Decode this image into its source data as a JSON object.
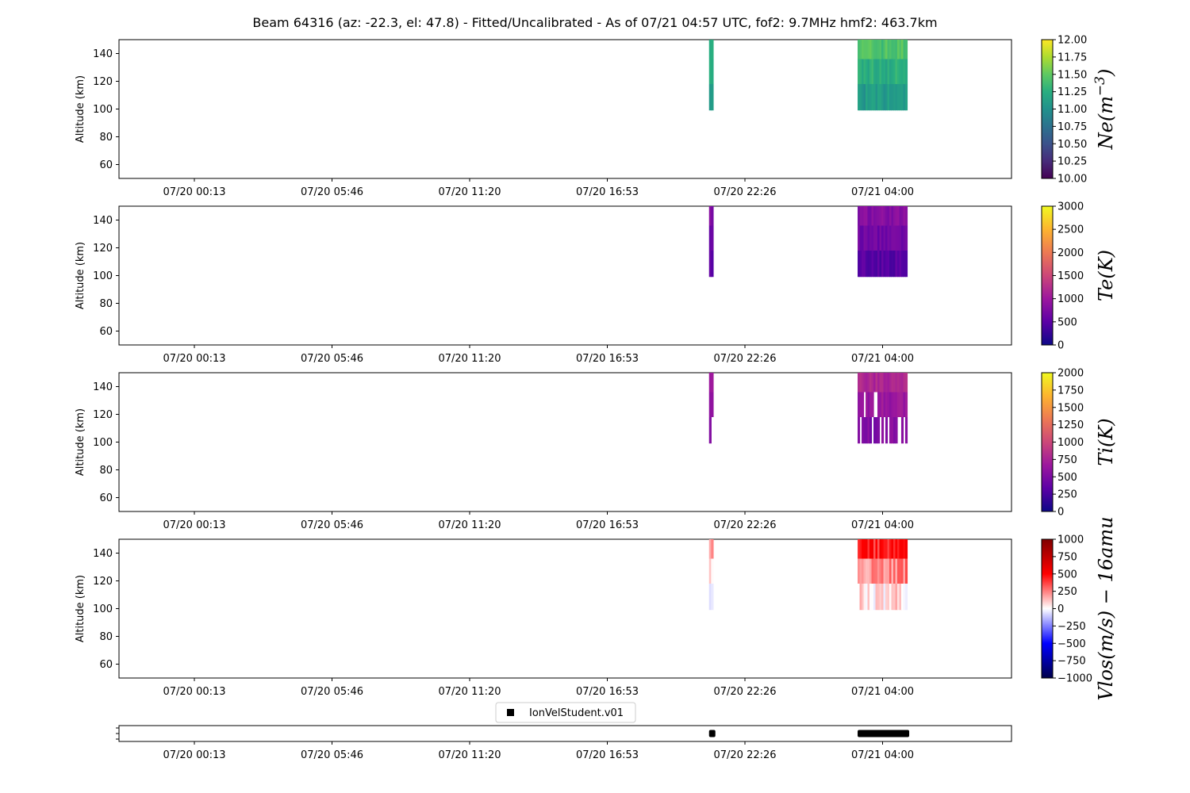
{
  "title": "Beam 64316 (az: -22.3, el: 47.8) - Fitted/Uncalibrated - As of 07/21 04:57 UTC, fof2: 9.7MHz  hmf2: 463.7km",
  "colors": {
    "viridis": [
      "#440154",
      "#472c7a",
      "#3b528b",
      "#2c728e",
      "#21918c",
      "#28ae80",
      "#5ec962",
      "#addc30",
      "#fde725"
    ],
    "plasma": [
      "#0d0887",
      "#5c01a6",
      "#9c179e",
      "#cc4778",
      "#ed7953",
      "#fdb42f",
      "#f0f921"
    ],
    "seismic": [
      "#00004c",
      "#0000ff",
      "#ffffff",
      "#ff0000",
      "#800000"
    ],
    "marker": "#000000"
  },
  "chart_data": [
    {
      "type": "heatmap",
      "parameter": "Ne",
      "colorbar_label": "Ne(m^-3)",
      "colormap": "viridis",
      "ylabel": "Altitude (km)",
      "yticks": [
        60,
        80,
        100,
        120,
        140
      ],
      "ylim": [
        50,
        150
      ],
      "xticks": [
        "07/20 00:13",
        "07/20 05:46",
        "07/20 11:20",
        "07/20 16:53",
        "07/20 22:26",
        "07/21 04:00"
      ],
      "clim": [
        10.0,
        12.0
      ],
      "colorbar_ticks": [
        "10.00",
        "10.25",
        "10.50",
        "10.75",
        "11.00",
        "11.25",
        "11.50",
        "11.75",
        "12.00"
      ],
      "data_blocks": [
        {
          "time_range": [
            "07/20 21:00",
            "07/20 21:10"
          ],
          "altitude_range": [
            99,
            150
          ],
          "value_range": [
            11.0,
            11.4
          ]
        },
        {
          "time_range": [
            "07/21 03:00",
            "07/21 05:00"
          ],
          "altitude_range": [
            99,
            150
          ],
          "value_range": [
            10.9,
            11.6
          ]
        }
      ]
    },
    {
      "type": "heatmap",
      "parameter": "Te",
      "colorbar_label": "Te(K)",
      "colormap": "plasma",
      "ylabel": "Altitude (km)",
      "yticks": [
        60,
        80,
        100,
        120,
        140
      ],
      "ylim": [
        50,
        150
      ],
      "xticks": [
        "07/20 00:13",
        "07/20 05:46",
        "07/20 11:20",
        "07/20 16:53",
        "07/20 22:26",
        "07/21 04:00"
      ],
      "clim": [
        0,
        3000
      ],
      "colorbar_ticks": [
        "0",
        "500",
        "1000",
        "1500",
        "2000",
        "2500",
        "3000"
      ],
      "data_blocks": [
        {
          "time_range": [
            "07/20 21:00",
            "07/20 21:10"
          ],
          "altitude_range": [
            99,
            150
          ],
          "value_range": [
            400,
            900
          ]
        },
        {
          "time_range": [
            "07/21 03:00",
            "07/21 05:00"
          ],
          "altitude_range": [
            99,
            150
          ],
          "value_range": [
            300,
            1000
          ]
        }
      ]
    },
    {
      "type": "heatmap",
      "parameter": "Ti",
      "colorbar_label": "Ti(K)",
      "colormap": "plasma",
      "ylabel": "Altitude (km)",
      "yticks": [
        60,
        80,
        100,
        120,
        140
      ],
      "ylim": [
        50,
        150
      ],
      "xticks": [
        "07/20 00:13",
        "07/20 05:46",
        "07/20 11:20",
        "07/20 16:53",
        "07/20 22:26",
        "07/21 04:00"
      ],
      "clim": [
        0,
        2000
      ],
      "colorbar_ticks": [
        "0",
        "250",
        "500",
        "750",
        "1000",
        "1250",
        "1500",
        "1750",
        "2000"
      ],
      "data_blocks": [
        {
          "time_range": [
            "07/20 21:00",
            "07/20 21:10"
          ],
          "altitude_range": [
            99,
            150
          ],
          "value_range": [
            500,
            700
          ]
        },
        {
          "time_range": [
            "07/21 03:00",
            "07/21 05:00"
          ],
          "altitude_range": [
            99,
            150
          ],
          "value_range": [
            400,
            900
          ]
        }
      ]
    },
    {
      "type": "heatmap",
      "parameter": "Vlos",
      "colorbar_label": "Vlos(m/s) - 16amu",
      "colormap": "seismic",
      "ylabel": "Altitude (km)",
      "yticks": [
        60,
        80,
        100,
        120,
        140
      ],
      "ylim": [
        50,
        150
      ],
      "xticks": [
        "07/20 00:13",
        "07/20 05:46",
        "07/20 11:20",
        "07/20 16:53",
        "07/20 22:26",
        "07/21 04:00"
      ],
      "clim": [
        -1000,
        1000
      ],
      "colorbar_ticks": [
        "−1000",
        "−750",
        "−500",
        "−250",
        "0",
        "250",
        "500",
        "750",
        "1000"
      ],
      "data_blocks": [
        {
          "time_range": [
            "07/20 21:00",
            "07/20 21:10"
          ],
          "altitude_range": [
            99,
            150
          ],
          "value_range": [
            -200,
            300
          ]
        },
        {
          "time_range": [
            "07/21 03:00",
            "07/21 05:00"
          ],
          "altitude_range": [
            99,
            150
          ],
          "value_range": [
            -100,
            600
          ]
        }
      ]
    },
    {
      "type": "scatter",
      "parameter": "availability",
      "legend": "IonVelStudent.v01",
      "legend_position": "top-center",
      "xticks": [
        "07/20 00:13",
        "07/20 05:46",
        "07/20 11:20",
        "07/20 16:53",
        "07/20 22:26",
        "07/21 04:00"
      ],
      "segments": [
        {
          "time_range": [
            "07/20 21:00",
            "07/20 21:15"
          ]
        },
        {
          "time_range": [
            "07/21 03:00",
            "07/21 05:05"
          ]
        }
      ]
    }
  ]
}
